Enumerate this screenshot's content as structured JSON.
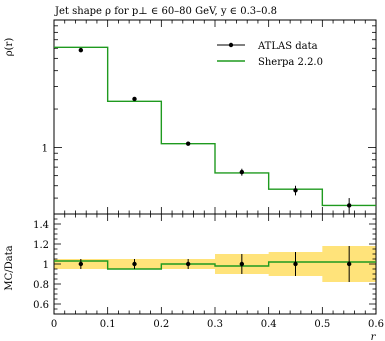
{
  "chart_data": [
    {
      "type": "line",
      "title": "Jet shape ρ for p⊥ ∈ 60–80 GeV, y ∈ 0.3–0.8",
      "ylabel": "ρ(r)",
      "yscale": "log",
      "ylim": [
        0.3,
        10
      ],
      "y_tick_labels": [
        "1"
      ],
      "x_bin_edges": [
        0,
        0.1,
        0.2,
        0.3,
        0.4,
        0.5,
        0.6
      ],
      "legend_position": "top-right",
      "series": [
        {
          "name": "ATLAS data",
          "style": "points-with-errorbars",
          "color": "#000000",
          "x": [
            0.05,
            0.15,
            0.25,
            0.35,
            0.45,
            0.55
          ],
          "y": [
            5.8,
            2.4,
            1.07,
            0.64,
            0.46,
            0.35
          ],
          "yerr": [
            0.15,
            0.08,
            0.03,
            0.04,
            0.04,
            0.05
          ]
        },
        {
          "name": "Sherpa 2.2.0",
          "style": "step",
          "color": "#1f9a1f",
          "y": [
            6.1,
            2.3,
            1.07,
            0.63,
            0.47,
            0.35
          ]
        }
      ]
    },
    {
      "type": "line",
      "ylabel": "MC/Data",
      "xlabel": "r",
      "xlim": [
        0,
        0.6
      ],
      "ylim": [
        0.5,
        1.5
      ],
      "x_tick_labels": [
        "0",
        "0.1",
        "0.2",
        "0.3",
        "0.4",
        "0.5",
        "0.6"
      ],
      "y_tick_labels": [
        "0.6",
        "0.8",
        "1",
        "1.2",
        "1.4"
      ],
      "band": {
        "color": "#ffe37a"
      },
      "series": [
        {
          "name": "Sherpa 2.2.0",
          "style": "step",
          "color": "#1f9a1f",
          "y": [
            1.03,
            0.95,
            1.0,
            0.98,
            1.02,
            1.02
          ]
        },
        {
          "name": "ATLAS data",
          "style": "points-with-errorbars",
          "color": "#000000",
          "x": [
            0.05,
            0.15,
            0.25,
            0.35,
            0.45,
            0.55
          ],
          "y": [
            1.0,
            1.0,
            1.0,
            1.0,
            1.0,
            1.0
          ],
          "yerr": [
            0.05,
            0.05,
            0.05,
            0.1,
            0.12,
            0.18
          ]
        }
      ]
    }
  ]
}
